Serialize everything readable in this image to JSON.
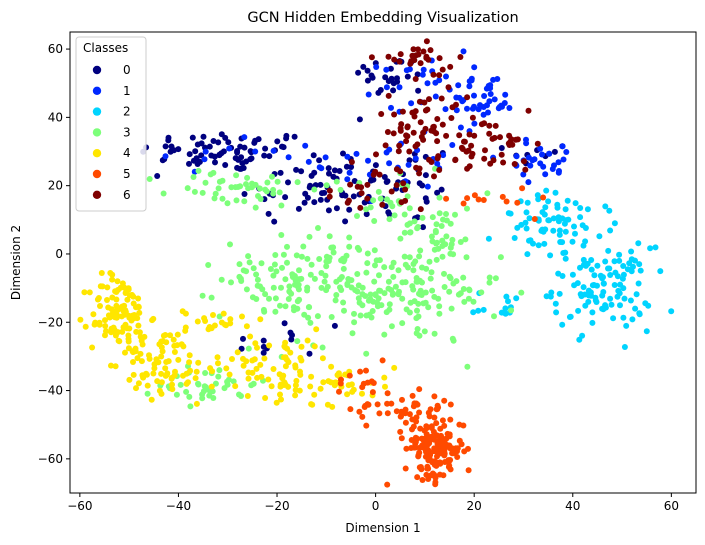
{
  "chart_data": {
    "type": "scatter",
    "title": "GCN Hidden Embedding Visualization",
    "xlabel": "Dimension 1",
    "ylabel": "Dimension 2",
    "xlim": [
      -62,
      65
    ],
    "ylim": [
      -70,
      65
    ],
    "x_ticks": [
      -60,
      -40,
      -20,
      0,
      20,
      40,
      60
    ],
    "y_ticks": [
      -60,
      -40,
      -20,
      0,
      20,
      40,
      60
    ],
    "x_tick_labels": [
      "−60",
      "−40",
      "−20",
      "0",
      "20",
      "40",
      "60"
    ],
    "y_tick_labels": [
      "−60",
      "−40",
      "−20",
      "0",
      "20",
      "40",
      "60"
    ],
    "grid": false,
    "legend": {
      "title": "Classes",
      "placement": "top-left",
      "labels": [
        "0",
        "1",
        "2",
        "3",
        "4",
        "5",
        "6"
      ]
    },
    "series": [
      {
        "name": "0",
        "color": "#00007f",
        "clusters": [
          {
            "cx": -30,
            "cy": 30,
            "sx": 9,
            "sy": 3,
            "n": 70
          },
          {
            "cx": -12,
            "cy": 20,
            "sx": 8,
            "sy": 6,
            "n": 55
          },
          {
            "cx": 5,
            "cy": 20,
            "sx": 6,
            "sy": 7,
            "n": 35
          },
          {
            "cx": 3,
            "cy": 52,
            "sx": 4,
            "sy": 3,
            "n": 25
          },
          {
            "cx": 33,
            "cy": 29,
            "sx": 3,
            "sy": 2,
            "n": 10
          },
          {
            "cx": -18,
            "cy": -26,
            "sx": 6,
            "sy": 4,
            "n": 12
          }
        ]
      },
      {
        "name": "1",
        "color": "#0028ff",
        "clusters": [
          {
            "cx": 22,
            "cy": 44,
            "sx": 3,
            "sy": 3,
            "n": 30
          },
          {
            "cx": 11,
            "cy": 50,
            "sx": 5,
            "sy": 4,
            "n": 30
          },
          {
            "cx": 5,
            "cy": 28,
            "sx": 9,
            "sy": 8,
            "n": 35
          },
          {
            "cx": 34,
            "cy": 28,
            "sx": 4,
            "sy": 3,
            "n": 25
          },
          {
            "cx": -30,
            "cy": 30,
            "sx": 6,
            "sy": 3,
            "n": 8
          }
        ]
      },
      {
        "name": "2",
        "color": "#00d4ff",
        "clusters": [
          {
            "cx": 46,
            "cy": -10,
            "sx": 5,
            "sy": 6,
            "n": 110
          },
          {
            "cx": 37,
            "cy": 8,
            "sx": 6,
            "sy": 5,
            "n": 70
          },
          {
            "cx": 26,
            "cy": -15,
            "sx": 3,
            "sy": 2,
            "n": 12
          }
        ]
      },
      {
        "name": "3",
        "color": "#7dff7a",
        "clusters": [
          {
            "cx": -15,
            "cy": -7,
            "sx": 8,
            "sy": 6,
            "n": 120
          },
          {
            "cx": 5,
            "cy": -12,
            "sx": 10,
            "sy": 7,
            "n": 150
          },
          {
            "cx": -28,
            "cy": 19,
            "sx": 7,
            "sy": 3,
            "n": 45
          },
          {
            "cx": 5,
            "cy": 14,
            "sx": 8,
            "sy": 6,
            "n": 40
          },
          {
            "cx": -34,
            "cy": -38,
            "sx": 5,
            "sy": 3,
            "n": 40
          },
          {
            "cx": 13,
            "cy": 6,
            "sx": 4,
            "sy": 4,
            "n": 25
          }
        ]
      },
      {
        "name": "4",
        "color": "#ffe600",
        "clusters": [
          {
            "cx": -52,
            "cy": -18,
            "sx": 3,
            "sy": 6,
            "n": 110
          },
          {
            "cx": -43,
            "cy": -32,
            "sx": 4,
            "sy": 5,
            "n": 70
          },
          {
            "cx": -22,
            "cy": -32,
            "sx": 7,
            "sy": 5,
            "n": 70
          },
          {
            "cx": -8,
            "cy": -38,
            "sx": 6,
            "sy": 3,
            "n": 40
          },
          {
            "cx": -33,
            "cy": -20,
            "sx": 3,
            "sy": 2,
            "n": 20
          }
        ]
      },
      {
        "name": "5",
        "color": "#ff4a00",
        "clusters": [
          {
            "cx": 12,
            "cy": -57,
            "sx": 3,
            "sy": 5,
            "n": 160
          },
          {
            "cx": 5,
            "cy": -45,
            "sx": 5,
            "sy": 3,
            "n": 35
          },
          {
            "cx": -5,
            "cy": -35,
            "sx": 4,
            "sy": 3,
            "n": 12
          },
          {
            "cx": 24,
            "cy": 16,
            "sx": 4,
            "sy": 2,
            "n": 12
          }
        ]
      },
      {
        "name": "6",
        "color": "#7f0000",
        "clusters": [
          {
            "cx": 8,
            "cy": 57,
            "sx": 4,
            "sy": 2,
            "n": 25
          },
          {
            "cx": 10,
            "cy": 38,
            "sx": 5,
            "sy": 6,
            "n": 60
          },
          {
            "cx": 25,
            "cy": 32,
            "sx": 4,
            "sy": 4,
            "n": 25
          },
          {
            "cx": 20,
            "cy": 28,
            "sx": 7,
            "sy": 2,
            "n": 20
          },
          {
            "cx": 0,
            "cy": 18,
            "sx": 5,
            "sy": 4,
            "n": 25
          }
        ]
      }
    ]
  }
}
